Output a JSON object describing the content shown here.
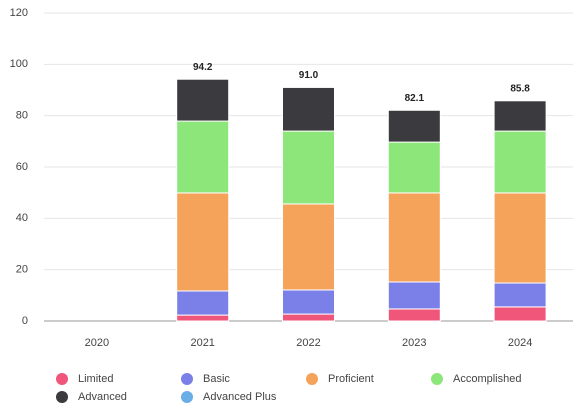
{
  "chart_data": {
    "type": "stacked_bar",
    "categories": [
      "2020",
      "2021",
      "2022",
      "2023",
      "2024"
    ],
    "series": [
      {
        "name": "Limited",
        "color": "#f0557a",
        "values": [
          null,
          2.3,
          2.7,
          4.7,
          5.5
        ]
      },
      {
        "name": "Basic",
        "color": "#7b7fe8",
        "values": [
          null,
          9.4,
          9.4,
          10.5,
          9.3
        ]
      },
      {
        "name": "Proficient",
        "color": "#f5a25a",
        "values": [
          null,
          38.2,
          33.5,
          34.7,
          35.1
        ]
      },
      {
        "name": "Accomplished",
        "color": "#8ce67a",
        "values": [
          null,
          28.0,
          28.4,
          19.8,
          24.1
        ]
      },
      {
        "name": "Advanced",
        "color": "#3a3a3f",
        "values": [
          null,
          16.3,
          17.0,
          12.4,
          11.8
        ]
      },
      {
        "name": "Advanced Plus",
        "color": "#6aaee8",
        "values": [
          null,
          null,
          null,
          null,
          null
        ]
      }
    ],
    "total_labels": [
      null,
      "94.2",
      "91.0",
      "82.1",
      "85.8"
    ],
    "ylim": [
      0,
      120
    ],
    "yticks": [
      0,
      20,
      40,
      60,
      80,
      100,
      120
    ],
    "grid": true,
    "legend": "bottom"
  }
}
